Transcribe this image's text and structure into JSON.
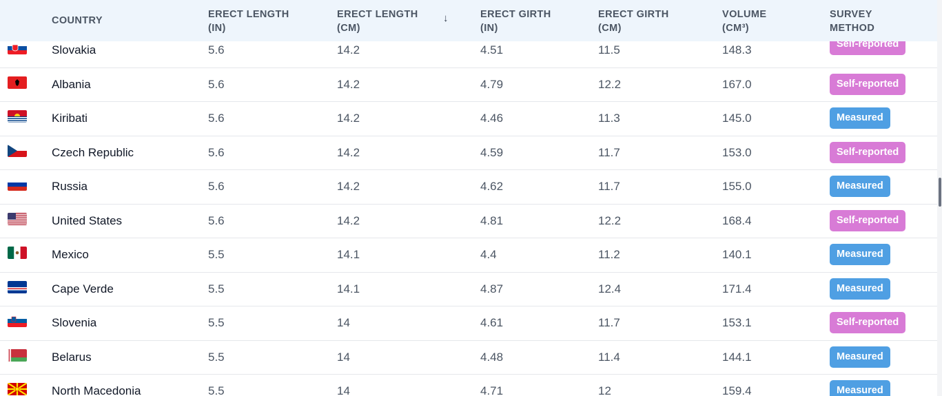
{
  "table": {
    "columns": [
      {
        "line1": "COUNTRY",
        "line2": ""
      },
      {
        "line1": "ERECT LENGTH",
        "line2": "(IN)"
      },
      {
        "line1": "ERECT LENGTH",
        "line2": "(CM)"
      },
      {
        "line1": "ERECT GIRTH",
        "line2": "(IN)"
      },
      {
        "line1": "ERECT GIRTH",
        "line2": "(CM)"
      },
      {
        "line1": "VOLUME",
        "line2": "(CM³)"
      },
      {
        "line1": "SURVEY",
        "line2": "METHOD"
      }
    ],
    "sort_icon": "arrow-down-icon",
    "sort_glyph": "↓",
    "rows": [
      {
        "country": "Slovakia",
        "flag": "slovakia-flag-icon",
        "len_in": "5.6",
        "len_cm": "14.2",
        "girth_in": "4.51",
        "girth_cm": "11.5",
        "volume": "148.3",
        "method": "Self-reported"
      },
      {
        "country": "Albania",
        "flag": "albania-flag-icon",
        "len_in": "5.6",
        "len_cm": "14.2",
        "girth_in": "4.79",
        "girth_cm": "12.2",
        "volume": "167.0",
        "method": "Self-reported"
      },
      {
        "country": "Kiribati",
        "flag": "kiribati-flag-icon",
        "len_in": "5.6",
        "len_cm": "14.2",
        "girth_in": "4.46",
        "girth_cm": "11.3",
        "volume": "145.0",
        "method": "Measured"
      },
      {
        "country": "Czech Republic",
        "flag": "czech-flag-icon",
        "len_in": "5.6",
        "len_cm": "14.2",
        "girth_in": "4.59",
        "girth_cm": "11.7",
        "volume": "153.0",
        "method": "Self-reported"
      },
      {
        "country": "Russia",
        "flag": "russia-flag-icon",
        "len_in": "5.6",
        "len_cm": "14.2",
        "girth_in": "4.62",
        "girth_cm": "11.7",
        "volume": "155.0",
        "method": "Measured"
      },
      {
        "country": "United States",
        "flag": "usa-flag-icon",
        "len_in": "5.6",
        "len_cm": "14.2",
        "girth_in": "4.81",
        "girth_cm": "12.2",
        "volume": "168.4",
        "method": "Self-reported"
      },
      {
        "country": "Mexico",
        "flag": "mexico-flag-icon",
        "len_in": "5.5",
        "len_cm": "14.1",
        "girth_in": "4.4",
        "girth_cm": "11.2",
        "volume": "140.1",
        "method": "Measured"
      },
      {
        "country": "Cape Verde",
        "flag": "cape-verde-flag-icon",
        "len_in": "5.5",
        "len_cm": "14.1",
        "girth_in": "4.87",
        "girth_cm": "12.4",
        "volume": "171.4",
        "method": "Measured"
      },
      {
        "country": "Slovenia",
        "flag": "slovenia-flag-icon",
        "len_in": "5.5",
        "len_cm": "14",
        "girth_in": "4.61",
        "girth_cm": "11.7",
        "volume": "153.1",
        "method": "Self-reported"
      },
      {
        "country": "Belarus",
        "flag": "belarus-flag-icon",
        "len_in": "5.5",
        "len_cm": "14",
        "girth_in": "4.48",
        "girth_cm": "11.4",
        "volume": "144.1",
        "method": "Measured"
      },
      {
        "country": "North Macedonia",
        "flag": "north-macedonia-flag-icon",
        "len_in": "5.5",
        "len_cm": "14",
        "girth_in": "4.71",
        "girth_cm": "12",
        "volume": "159.4",
        "method": "Measured"
      }
    ]
  },
  "colors": {
    "header_bg": "#eef5fc",
    "self_reported_badge": "#d87bd6",
    "measured_badge": "#4f9fe3"
  }
}
